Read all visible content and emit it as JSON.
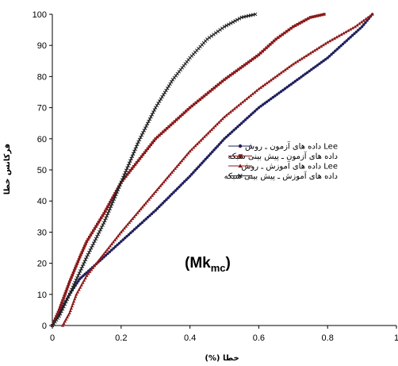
{
  "chart_data": {
    "type": "line",
    "xlabel": "(%) خطا",
    "ylabel": "فرکانس خطا",
    "xlim": [
      0,
      1
    ],
    "ylim": [
      0,
      100
    ],
    "x_ticks": [
      "0",
      "0.2",
      "0.4",
      "0.6",
      "0.8",
      "1"
    ],
    "y_ticks": [
      "0",
      "10",
      "20",
      "30",
      "40",
      "50",
      "60",
      "70",
      "80",
      "90",
      "100"
    ],
    "grid": false,
    "legend_position": "right",
    "annotation": {
      "base": "(Mk",
      "sub": "mc",
      "end": ")"
    },
    "series": [
      {
        "name": "داده های آزمون ـ روش Lee",
        "color": "#1f1f5c",
        "marker": "circle",
        "points": [
          [
            0,
            0
          ],
          [
            0.02,
            4
          ],
          [
            0.05,
            10
          ],
          [
            0.08,
            15
          ],
          [
            0.1,
            17
          ],
          [
            0.15,
            22
          ],
          [
            0.2,
            27
          ],
          [
            0.3,
            37
          ],
          [
            0.4,
            48
          ],
          [
            0.5,
            60
          ],
          [
            0.6,
            70
          ],
          [
            0.7,
            78
          ],
          [
            0.8,
            86
          ],
          [
            0.85,
            91
          ],
          [
            0.9,
            96
          ],
          [
            0.93,
            100
          ]
        ]
      },
      {
        "name": "داده های آزمون ـ پیش بینی شبکه",
        "color": "#8b1a1a",
        "marker": "square",
        "points": [
          [
            0,
            0
          ],
          [
            0.02,
            5
          ],
          [
            0.05,
            14
          ],
          [
            0.08,
            22
          ],
          [
            0.1,
            27
          ],
          [
            0.15,
            36
          ],
          [
            0.2,
            46
          ],
          [
            0.3,
            60
          ],
          [
            0.4,
            70
          ],
          [
            0.5,
            79
          ],
          [
            0.6,
            87
          ],
          [
            0.65,
            92
          ],
          [
            0.7,
            96
          ],
          [
            0.75,
            99
          ],
          [
            0.79,
            100
          ]
        ]
      },
      {
        "name": "داده های آموزش ـ روش Lee",
        "color": "#8b1a1a",
        "marker": "triangle",
        "points": [
          [
            0.03,
            0
          ],
          [
            0.05,
            4
          ],
          [
            0.07,
            10
          ],
          [
            0.1,
            16
          ],
          [
            0.15,
            23
          ],
          [
            0.2,
            30
          ],
          [
            0.3,
            43
          ],
          [
            0.4,
            56
          ],
          [
            0.5,
            67
          ],
          [
            0.6,
            76
          ],
          [
            0.7,
            84
          ],
          [
            0.8,
            91
          ],
          [
            0.88,
            96
          ],
          [
            0.93,
            100
          ]
        ]
      },
      {
        "name": "داده های آموزش ـ پیش بینی شبکه",
        "color": "#222222",
        "marker": "x",
        "points": [
          [
            0,
            0
          ],
          [
            0.02,
            3
          ],
          [
            0.05,
            10
          ],
          [
            0.1,
            22
          ],
          [
            0.15,
            33
          ],
          [
            0.2,
            46
          ],
          [
            0.25,
            59
          ],
          [
            0.3,
            70
          ],
          [
            0.35,
            79
          ],
          [
            0.4,
            86
          ],
          [
            0.45,
            92
          ],
          [
            0.5,
            96
          ],
          [
            0.55,
            99
          ],
          [
            0.59,
            100
          ]
        ]
      }
    ]
  }
}
